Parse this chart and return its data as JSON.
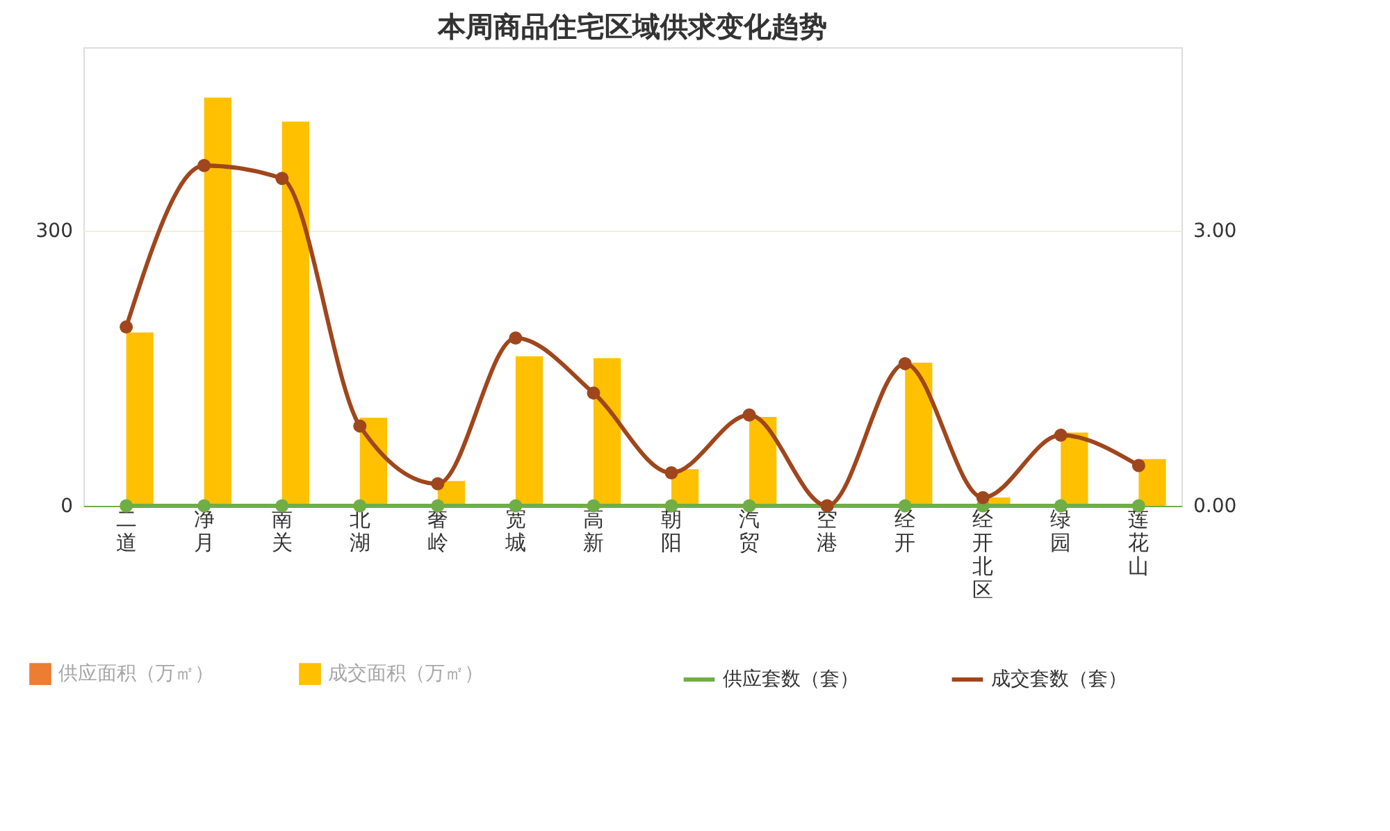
{
  "chart_data": {
    "type": "bar",
    "title": "本周商品住宅区域供求变化趋势",
    "categories": [
      "二道",
      "净月",
      "南关",
      "北湖",
      "奢岭",
      "宽城",
      "高新",
      "朝阳",
      "汽贸",
      "空港",
      "经开",
      "经开北区",
      "绿园",
      "莲花山"
    ],
    "series": [
      {
        "name": "供应面积（万㎡）",
        "color": "#ed7d31",
        "values": [
          0,
          0,
          0,
          0,
          0,
          0,
          0,
          0,
          0,
          0,
          0,
          0,
          0,
          0
        ]
      },
      {
        "name": "成交面积（万㎡）",
        "color": "#ffc000",
        "values": [
          189,
          445,
          419,
          96,
          27,
          163,
          161,
          40,
          97,
          0,
          156,
          9,
          80,
          51
        ]
      },
      {
        "name": "供应套数（套）",
        "color": "#70ad47",
        "type": "line",
        "axis": "y2",
        "values": [
          0,
          0,
          0,
          0,
          0,
          0,
          0,
          0,
          0,
          0,
          0,
          0,
          0,
          0
        ]
      },
      {
        "name": "成交套数（套）",
        "color": "#a0461c",
        "type": "line",
        "axis": "y2",
        "values": [
          1.95,
          3.71,
          3.57,
          0.87,
          0.24,
          1.83,
          1.23,
          0.36,
          0.99,
          0,
          1.55,
          0.09,
          0.77,
          0.44
        ]
      }
    ],
    "ylim": [
      0,
      500
    ],
    "yticks": [
      0,
      300
    ],
    "y2lim": [
      0,
      5
    ],
    "y2ticks": [
      {
        "value": 0,
        "label": "0.00"
      },
      {
        "value": 3,
        "label": "3.00"
      }
    ],
    "grid": "y",
    "legend": "bottom",
    "marker": "circle"
  }
}
